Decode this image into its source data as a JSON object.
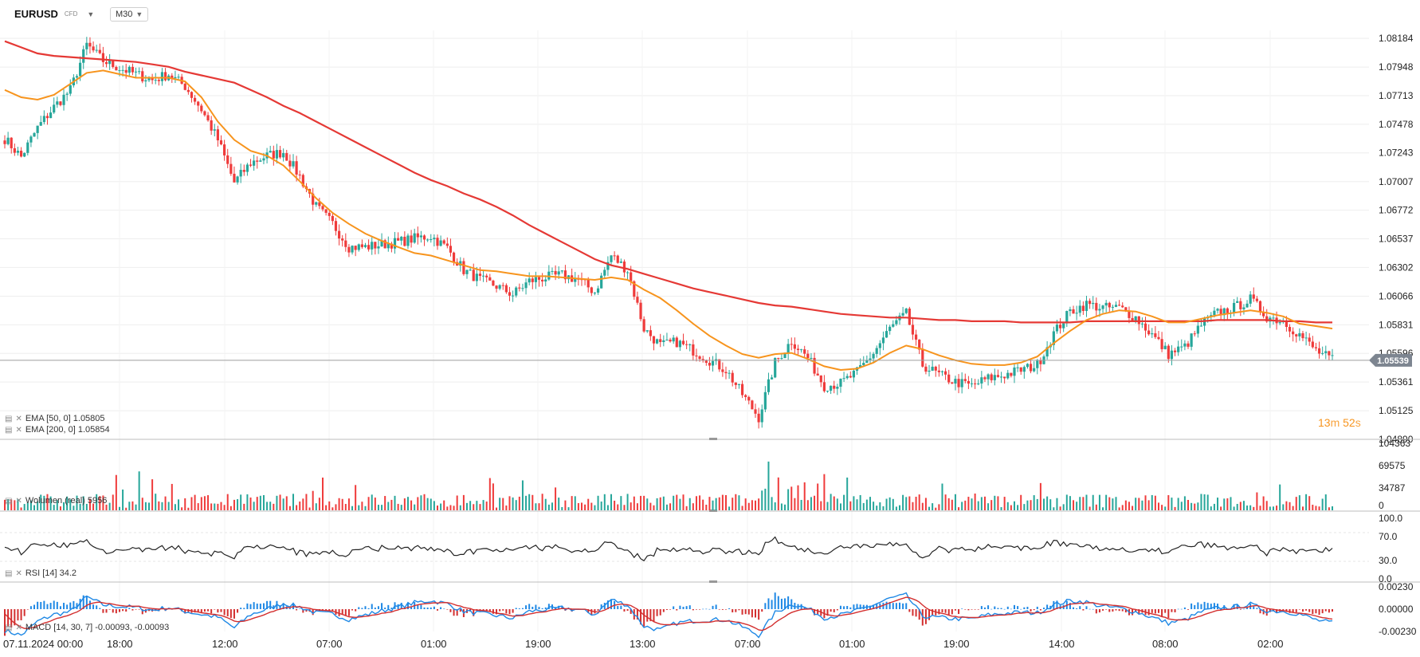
{
  "header": {
    "symbol": "EURUSD",
    "instrument_type": "CFD",
    "timeframe": "M30"
  },
  "price_axis": {
    "ticks": [
      "1.08184",
      "1.07948",
      "1.07713",
      "1.07478",
      "1.07243",
      "1.07007",
      "1.06772",
      "1.06537",
      "1.06302",
      "1.06066",
      "1.05831",
      "1.05596",
      "1.05361",
      "1.05125",
      "1.04890"
    ],
    "current_price": "1.05539"
  },
  "time_axis": {
    "labels": [
      "07.11.2024  00:00",
      "18:00",
      "12:00",
      "07:00",
      "01:00",
      "19:00",
      "13:00",
      "07:00",
      "01:00",
      "19:00",
      "14:00",
      "08:00",
      "02:00"
    ]
  },
  "indicators": {
    "ema50": {
      "label": "EMA [50, 0] 1.05805",
      "color": "#f7941d"
    },
    "ema200": {
      "label": "EMA [200, 0] 1.05854",
      "color": "#e53935"
    },
    "volume": {
      "label": "Wolumen (real)    5956",
      "ticks": [
        "104363",
        "69575",
        "34787",
        "0"
      ]
    },
    "rsi": {
      "label": "RSI [14]  34.2",
      "ticks": [
        "100.0",
        "70.0",
        "30.0",
        "0.0"
      ]
    },
    "macd": {
      "label": "MACD [14, 30, 7] -0.00093,  -0.00093",
      "ticks": [
        "0.00230",
        "0.00000",
        "-0.00230"
      ]
    }
  },
  "timer": {
    "minutes": "13",
    "m_unit": "m",
    "seconds": "52",
    "s_unit": "s"
  },
  "colors": {
    "bull": "#26a69a",
    "bear": "#ef3b3b",
    "macd_pos": "#1e88e5",
    "macd_neg": "#d32f2f",
    "grid": "#eeeeee",
    "price_line": "#9e9e9e"
  },
  "chart_data": {
    "type": "candlestick",
    "ylim": [
      1.0489,
      1.0825
    ],
    "closes_path": [
      1.0736,
      1.0721,
      1.0745,
      1.0762,
      1.0776,
      1.0813,
      1.08,
      1.0794,
      1.0789,
      1.0784,
      1.0789,
      1.0779,
      1.076,
      1.0735,
      1.07,
      1.0716,
      1.0722,
      1.0725,
      1.0705,
      1.068,
      1.0666,
      1.0647,
      1.0647,
      1.0649,
      1.0651,
      1.0654,
      1.0656,
      1.0646,
      1.0628,
      1.062,
      1.0615,
      1.0608,
      1.0619,
      1.0622,
      1.0624,
      1.062,
      1.061,
      1.064,
      1.0628,
      1.058,
      1.0566,
      1.0569,
      1.0562,
      1.0554,
      1.0546,
      1.0526,
      1.0507,
      1.0552,
      1.057,
      1.0556,
      1.0533,
      1.0535,
      1.0544,
      1.056,
      1.058,
      1.0592,
      1.055,
      1.0542,
      1.0536,
      1.0533,
      1.0539,
      1.0542,
      1.0546,
      1.055,
      1.0576,
      1.0594,
      1.06,
      1.0597,
      1.0597,
      1.0589,
      1.0575,
      1.0559,
      1.0565,
      1.0583,
      1.0593,
      1.0597,
      1.0604,
      1.059,
      1.0586,
      1.0575,
      1.0562,
      1.0554
    ],
    "series": [
      {
        "name": "EMA [50, 0]",
        "values": [
          1.0776,
          1.077,
          1.0768,
          1.0772,
          1.0781,
          1.079,
          1.0792,
          1.0789,
          1.0786,
          1.0786,
          1.0786,
          1.0783,
          1.077,
          1.075,
          1.0735,
          1.0726,
          1.0722,
          1.0714,
          1.0701,
          1.0687,
          1.0675,
          1.0666,
          1.0658,
          1.0652,
          1.0647,
          1.0642,
          1.064,
          1.0636,
          1.0632,
          1.0628,
          1.0627,
          1.0625,
          1.0623,
          1.0623,
          1.0622,
          1.0621,
          1.062,
          1.0622,
          1.062,
          1.0612,
          1.0605,
          1.0595,
          1.0584,
          1.0574,
          1.0566,
          1.0559,
          1.0556,
          1.0559,
          1.056,
          1.0555,
          1.0549,
          1.0546,
          1.0547,
          1.0552,
          1.056,
          1.0566,
          1.0563,
          1.0558,
          1.0554,
          1.0551,
          1.055,
          1.055,
          1.0552,
          1.0557,
          1.0568,
          1.0578,
          1.0587,
          1.0592,
          1.0595,
          1.0594,
          1.059,
          1.0585,
          1.0585,
          1.0588,
          1.0591,
          1.0593,
          1.0595,
          1.0593,
          1.059,
          1.0584,
          1.0582,
          1.058
        ]
      },
      {
        "name": "EMA [200, 0]",
        "values": [
          1.0816,
          1.0811,
          1.0806,
          1.0804,
          1.0803,
          1.0802,
          1.0801,
          1.08,
          1.0799,
          1.0797,
          1.0795,
          1.0791,
          1.0788,
          1.0785,
          1.0782,
          1.0776,
          1.077,
          1.0763,
          1.0757,
          1.075,
          1.0743,
          1.0736,
          1.0729,
          1.0722,
          1.0715,
          1.0708,
          1.0702,
          1.0697,
          1.0691,
          1.0686,
          1.068,
          1.0673,
          1.0665,
          1.0658,
          1.0651,
          1.0644,
          1.0637,
          1.0632,
          1.0629,
          1.0625,
          1.0621,
          1.0617,
          1.0613,
          1.061,
          1.0607,
          1.0604,
          1.0601,
          1.0599,
          1.0598,
          1.0596,
          1.0594,
          1.0592,
          1.0591,
          1.059,
          1.0589,
          1.0589,
          1.0588,
          1.0587,
          1.0587,
          1.0586,
          1.0586,
          1.0586,
          1.0585,
          1.0585,
          1.0585,
          1.0585,
          1.0586,
          1.0586,
          1.0586,
          1.0586,
          1.0586,
          1.0586,
          1.0586,
          1.0586,
          1.0587,
          1.0587,
          1.0587,
          1.0587,
          1.0586,
          1.0586,
          1.0585,
          1.0585
        ]
      }
    ]
  }
}
